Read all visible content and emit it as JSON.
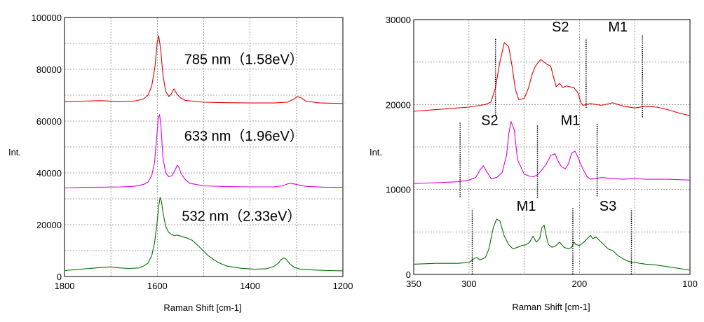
{
  "chart_data": [
    {
      "type": "line",
      "xlabel": "Raman Shift [cm-1]",
      "ylabel": "Int.",
      "xlim": [
        1800,
        1200
      ],
      "ylim": [
        0,
        100000
      ],
      "grid": true,
      "x_ticks": [
        "1800",
        "1600",
        "1400",
        "1200"
      ],
      "y_ticks": [
        "0",
        "20000",
        "40000",
        "60000",
        "80000",
        "100000"
      ],
      "annotations": [
        {
          "text": "785 nm（1.58eV）",
          "x": 1542,
          "y": 82000
        },
        {
          "text": "633 nm（1.96eV）",
          "x": 1542,
          "y": 52500
        },
        {
          "text": "532 nm（2.33eV）",
          "x": 1547,
          "y": 21500
        }
      ],
      "series": [
        {
          "color": "#e00000",
          "x": [
            1800,
            1760,
            1720,
            1680,
            1650,
            1630,
            1620,
            1612,
            1605,
            1600,
            1597,
            1593,
            1588,
            1582,
            1575,
            1570,
            1564,
            1558,
            1550,
            1540,
            1500,
            1450,
            1400,
            1350,
            1320,
            1305,
            1298,
            1290,
            1280,
            1250,
            1200
          ],
          "y": [
            67500,
            67700,
            67900,
            67500,
            67700,
            68500,
            70000,
            73500,
            81000,
            90500,
            93000,
            88000,
            78000,
            71500,
            69500,
            70500,
            72500,
            70500,
            69000,
            68000,
            67300,
            67100,
            67000,
            67000,
            67300,
            68500,
            69500,
            69000,
            67700,
            67000,
            66800
          ]
        },
        {
          "color": "#dd00dd",
          "x": [
            1800,
            1760,
            1720,
            1680,
            1650,
            1630,
            1620,
            1612,
            1606,
            1602,
            1598,
            1595,
            1592,
            1588,
            1582,
            1575,
            1568,
            1562,
            1557,
            1553,
            1548,
            1540,
            1530,
            1500,
            1450,
            1400,
            1350,
            1330,
            1318,
            1310,
            1300,
            1280,
            1240,
            1200
          ],
          "y": [
            34200,
            34400,
            34500,
            34600,
            34800,
            35500,
            36500,
            39000,
            44000,
            52000,
            61000,
            62500,
            58000,
            46000,
            40000,
            38500,
            39000,
            41000,
            43000,
            42000,
            39500,
            37500,
            36000,
            35000,
            34700,
            34600,
            34600,
            35000,
            35800,
            36000,
            35500,
            34800,
            34500,
            34400
          ]
        },
        {
          "color": "#007000",
          "x": [
            1800,
            1760,
            1720,
            1700,
            1680,
            1660,
            1640,
            1630,
            1620,
            1612,
            1606,
            1601,
            1597,
            1594,
            1591,
            1587,
            1582,
            1576,
            1570,
            1564,
            1557,
            1550,
            1543,
            1535,
            1525,
            1510,
            1490,
            1470,
            1450,
            1420,
            1390,
            1365,
            1350,
            1340,
            1333,
            1328,
            1323,
            1315,
            1305,
            1290,
            1260,
            1230,
            1200
          ],
          "y": [
            2300,
            2900,
            3500,
            3700,
            3300,
            3100,
            3300,
            4000,
            5200,
            8000,
            13000,
            20000,
            27000,
            30500,
            29000,
            24000,
            19500,
            17200,
            16300,
            15800,
            16000,
            15600,
            15200,
            14800,
            14000,
            11500,
            8000,
            5500,
            4000,
            3200,
            2800,
            3000,
            3800,
            5000,
            6500,
            7200,
            6800,
            5000,
            3500,
            2800,
            2500,
            2300,
            2200
          ]
        }
      ]
    },
    {
      "type": "line",
      "xlabel": "Raman Shift [cm-1]",
      "ylabel": "Int.",
      "xlim": [
        350,
        100
      ],
      "ylim": [
        0,
        30000
      ],
      "grid": true,
      "x_ticks": [
        "350",
        "300",
        "200",
        "100"
      ],
      "y_ticks": [
        "0",
        "10000",
        "20000",
        "30000"
      ],
      "annotations": [
        {
          "text": "S2",
          "x": 225,
          "y": 28600
        },
        {
          "text": "M1",
          "x": 174,
          "y": 28600
        },
        {
          "text": "S2",
          "x": 289,
          "y": 17600
        },
        {
          "text": "M1",
          "x": 217,
          "y": 17600
        },
        {
          "text": "M1",
          "x": 257,
          "y": 7500
        },
        {
          "text": "S3",
          "x": 182,
          "y": 7500
        }
      ],
      "markers": [
        {
          "x": 276,
          "y_from": 18700,
          "y_to": 27800
        },
        {
          "x": 194,
          "y_from": 19600,
          "y_to": 27800
        },
        {
          "x": 143,
          "y_from": 18500,
          "y_to": 28200
        },
        {
          "x": 308,
          "y_from": 9100,
          "y_to": 17900
        },
        {
          "x": 238,
          "y_from": 9000,
          "y_to": 17600
        },
        {
          "x": 184,
          "y_from": 9200,
          "y_to": 17800
        },
        {
          "x": 297,
          "y_from": 0,
          "y_to": 7700
        },
        {
          "x": 206,
          "y_from": 0,
          "y_to": 7800
        },
        {
          "x": 153,
          "y_from": 0,
          "y_to": 7700
        }
      ],
      "series": [
        {
          "color": "#e00000",
          "x": [
            350,
            330,
            310,
            300,
            290,
            285,
            280,
            276,
            272,
            268,
            264,
            261,
            258,
            255,
            250,
            246,
            243,
            240,
            235,
            230,
            226,
            223,
            221,
            218,
            215,
            212,
            209,
            205,
            201,
            199,
            197,
            194,
            190,
            180,
            170,
            160,
            150,
            140,
            130,
            120,
            110,
            100
          ],
          "y": [
            19200,
            19400,
            19600,
            19700,
            19900,
            20000,
            20300,
            22000,
            25000,
            27300,
            26800,
            24500,
            21800,
            20600,
            20700,
            22000,
            23500,
            24500,
            25300,
            24800,
            24500,
            23000,
            22100,
            22500,
            22000,
            22200,
            22100,
            22000,
            21300,
            20300,
            19900,
            20000,
            20100,
            19900,
            20200,
            19800,
            19600,
            19800,
            19700,
            19400,
            19000,
            18700
          ]
        },
        {
          "color": "#dd00dd",
          "x": [
            350,
            330,
            310,
            300,
            294,
            290,
            287,
            284,
            280,
            275,
            270,
            266,
            264,
            262,
            259,
            256,
            250,
            246,
            242,
            238,
            234,
            230,
            226,
            222,
            220,
            217,
            213,
            210,
            207,
            204,
            202,
            199,
            196,
            193,
            190,
            185,
            180,
            170,
            160,
            150,
            140,
            120,
            100
          ],
          "y": [
            10700,
            10800,
            10900,
            11100,
            11400,
            12300,
            12800,
            12100,
            11300,
            11400,
            12000,
            14000,
            16500,
            18000,
            17000,
            13500,
            11800,
            11600,
            11500,
            11700,
            12300,
            13000,
            14000,
            14200,
            13500,
            12800,
            12400,
            13000,
            14300,
            14500,
            14000,
            13000,
            12200,
            11500,
            11200,
            11300,
            11400,
            11300,
            11200,
            11300,
            11200,
            11200,
            11100
          ]
        },
        {
          "color": "#007000",
          "x": [
            350,
            330,
            310,
            300,
            296,
            293,
            290,
            285,
            282,
            278,
            275,
            272,
            268,
            264,
            260,
            256,
            252,
            248,
            245,
            242,
            239,
            236,
            234,
            232,
            230,
            228,
            225,
            222,
            218,
            214,
            210,
            207,
            205,
            203,
            200,
            196,
            193,
            190,
            188,
            185,
            182,
            178,
            174,
            170,
            165,
            160,
            155,
            150,
            140,
            130,
            120,
            110,
            100
          ],
          "y": [
            1200,
            1300,
            1300,
            1400,
            1800,
            2000,
            1700,
            2000,
            3000,
            5500,
            6500,
            6300,
            4500,
            3500,
            3000,
            3200,
            3400,
            3500,
            3800,
            4500,
            3800,
            4200,
            5500,
            5800,
            4500,
            3500,
            3200,
            3300,
            3800,
            3200,
            3000,
            3200,
            3800,
            3500,
            3400,
            3800,
            4200,
            4600,
            4200,
            4400,
            4000,
            3500,
            3000,
            2800,
            2200,
            1800,
            1500,
            1400,
            1200,
            1100,
            900,
            700,
            500
          ]
        }
      ]
    }
  ]
}
